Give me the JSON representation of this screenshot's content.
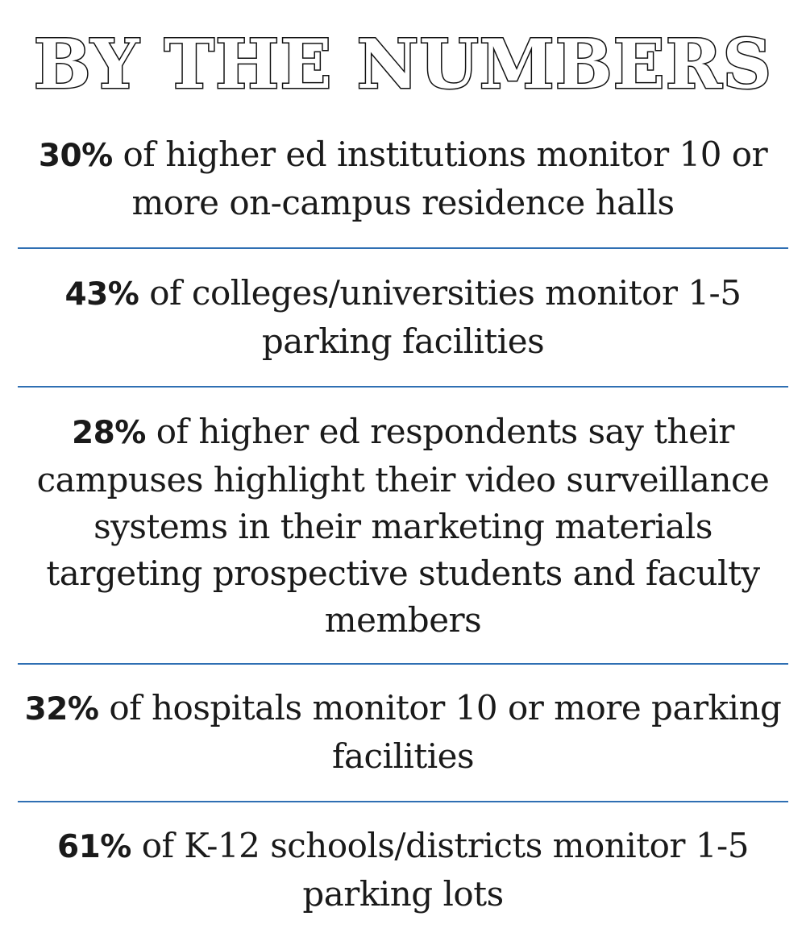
{
  "title": "BY THE NUMBERS",
  "stats": [
    {
      "pct": "30%",
      "text": " of higher ed institutions monitor 10 or more on-campus residence halls"
    },
    {
      "pct": "43%",
      "text": " of colleges/universities monitor 1-5 parking facilities"
    },
    {
      "pct": "28%",
      "text": " of higher ed respondents say their campuses highlight their video surveillance systems in their marketing materials targeting prospective students and faculty members"
    },
    {
      "pct": "32%",
      "text": " of hospitals monitor 10 or more parking facilities"
    },
    {
      "pct": "61%",
      "text": " of K-12 schools/districts monitor 1-5 parking lots"
    }
  ],
  "colors": {
    "divider": "#2f6fb3",
    "text": "#1a1a1a"
  }
}
